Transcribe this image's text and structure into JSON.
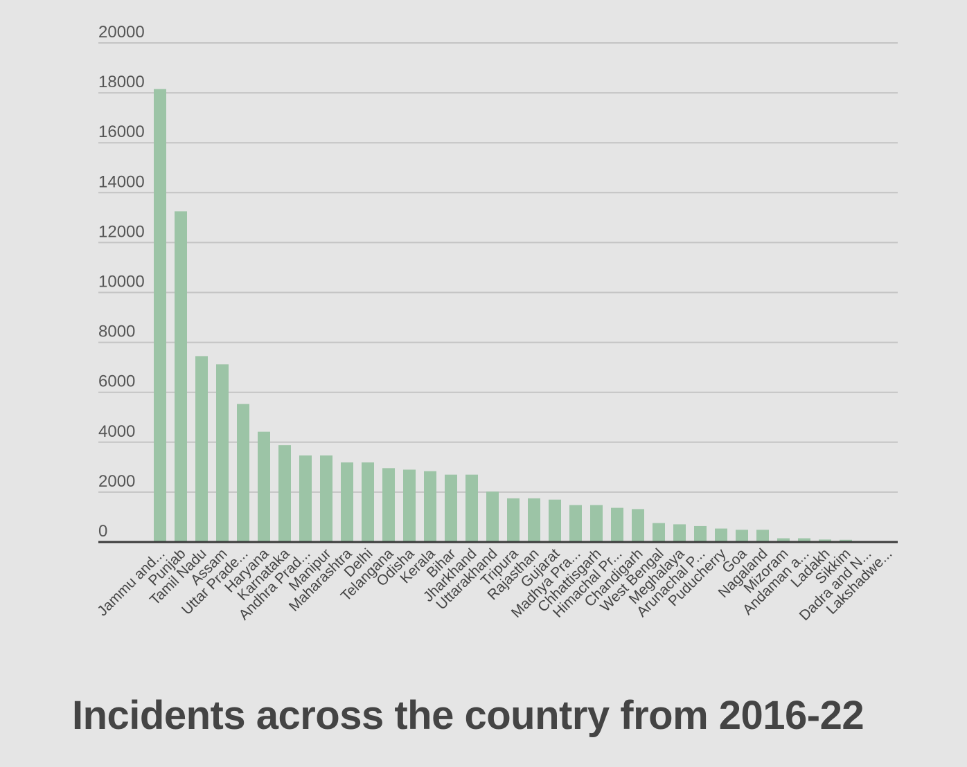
{
  "chart_data": {
    "type": "bar",
    "title": "Incidents across the country from 2016-22",
    "categories": [
      "Jammu and...",
      "Punjab",
      "Tamil Nadu",
      "Assam",
      "Uttar Prade...",
      "Haryana",
      "Karnataka",
      "Andhra Prad...",
      "Manipur",
      "Maharashtra",
      "Delhi",
      "Telangana",
      "Odisha",
      "Kerala",
      "Bihar",
      "Jharkhand",
      "Uttarakhand",
      "Tripura",
      "Rajasthan",
      "Gujarat",
      "Madhya Pra...",
      "Chhattisgarh",
      "Himachal Pr...",
      "Chandigarh",
      "West Bengal",
      "Meghalaya",
      "Arunachal P...",
      "Puducherry",
      "Goa",
      "Nagaland",
      "Mizoram",
      "Andaman a...",
      "Ladakh",
      "Sikkim",
      "Dadra and N...",
      "Lakshadwe..."
    ],
    "values": [
      18150,
      13250,
      7450,
      7120,
      5530,
      4420,
      3880,
      3470,
      3470,
      3190,
      3190,
      2960,
      2900,
      2840,
      2700,
      2700,
      2020,
      1750,
      1750,
      1700,
      1480,
      1480,
      1370,
      1320,
      760,
      710,
      640,
      540,
      490,
      490,
      150,
      150,
      100,
      90,
      0,
      0
    ],
    "yticks": [
      0,
      2000,
      4000,
      6000,
      8000,
      10000,
      12000,
      14000,
      16000,
      18000,
      20000
    ],
    "ylim": [
      0,
      20000
    ],
    "xlabel": "",
    "ylabel": "",
    "grid": true,
    "legend": "none",
    "colors": {
      "bar": "#9cc4a6",
      "grid": "#c4c4c4",
      "baseline": "#3a3a3a",
      "background": "#e5e5e5"
    }
  }
}
